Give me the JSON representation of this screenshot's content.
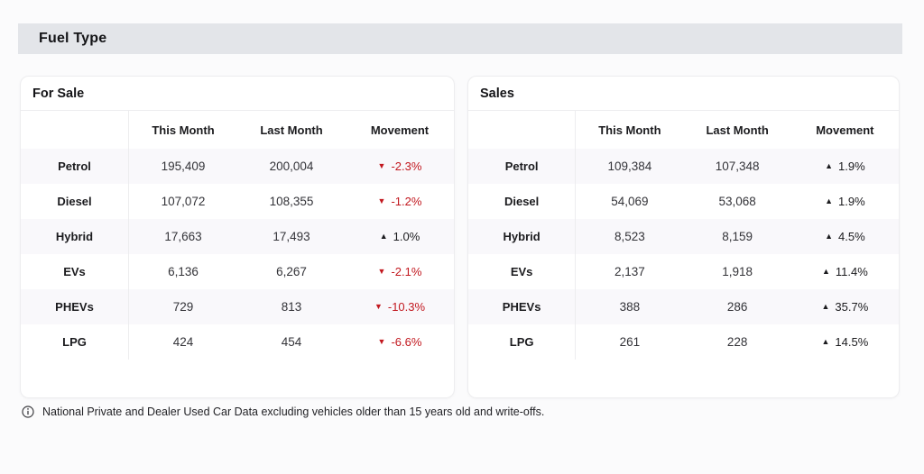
{
  "page": {
    "section_title": "Fuel Type",
    "footnote": "National Private and Dealer Used Car Data excluding vehicles older than 15 years old and write-offs."
  },
  "colors": {
    "band_bg": "#e3e5e9",
    "page_bg": "#fbfbfc",
    "card_bg": "#ffffff",
    "card_border": "#ededef",
    "row_stripe": "#f9f8fb",
    "text_dark": "#1b1b1e",
    "movement_negative": "#c2181f",
    "movement_positive": "#1b1b1e"
  },
  "icons": {
    "up": "▲",
    "down": "▼",
    "footnote_icon": "info-circle-icon"
  },
  "tables": [
    {
      "title": "For Sale",
      "columns": [
        "This Month",
        "Last Month",
        "Movement"
      ],
      "rows": [
        {
          "label": "Petrol",
          "this_month": "195,409",
          "last_month": "200,004",
          "movement": "-2.3%",
          "direction": "down"
        },
        {
          "label": "Diesel",
          "this_month": "107,072",
          "last_month": "108,355",
          "movement": "-1.2%",
          "direction": "down"
        },
        {
          "label": "Hybrid",
          "this_month": "17,663",
          "last_month": "17,493",
          "movement": "1.0%",
          "direction": "up"
        },
        {
          "label": "EVs",
          "this_month": "6,136",
          "last_month": "6,267",
          "movement": "-2.1%",
          "direction": "down"
        },
        {
          "label": "PHEVs",
          "this_month": "729",
          "last_month": "813",
          "movement": "-10.3%",
          "direction": "down"
        },
        {
          "label": "LPG",
          "this_month": "424",
          "last_month": "454",
          "movement": "-6.6%",
          "direction": "down"
        }
      ]
    },
    {
      "title": "Sales",
      "columns": [
        "This Month",
        "Last Month",
        "Movement"
      ],
      "rows": [
        {
          "label": "Petrol",
          "this_month": "109,384",
          "last_month": "107,348",
          "movement": "1.9%",
          "direction": "up"
        },
        {
          "label": "Diesel",
          "this_month": "54,069",
          "last_month": "53,068",
          "movement": "1.9%",
          "direction": "up"
        },
        {
          "label": "Hybrid",
          "this_month": "8,523",
          "last_month": "8,159",
          "movement": "4.5%",
          "direction": "up"
        },
        {
          "label": "EVs",
          "this_month": "2,137",
          "last_month": "1,918",
          "movement": "11.4%",
          "direction": "up"
        },
        {
          "label": "PHEVs",
          "this_month": "388",
          "last_month": "286",
          "movement": "35.7%",
          "direction": "up"
        },
        {
          "label": "LPG",
          "this_month": "261",
          "last_month": "228",
          "movement": "14.5%",
          "direction": "up"
        }
      ]
    }
  ]
}
